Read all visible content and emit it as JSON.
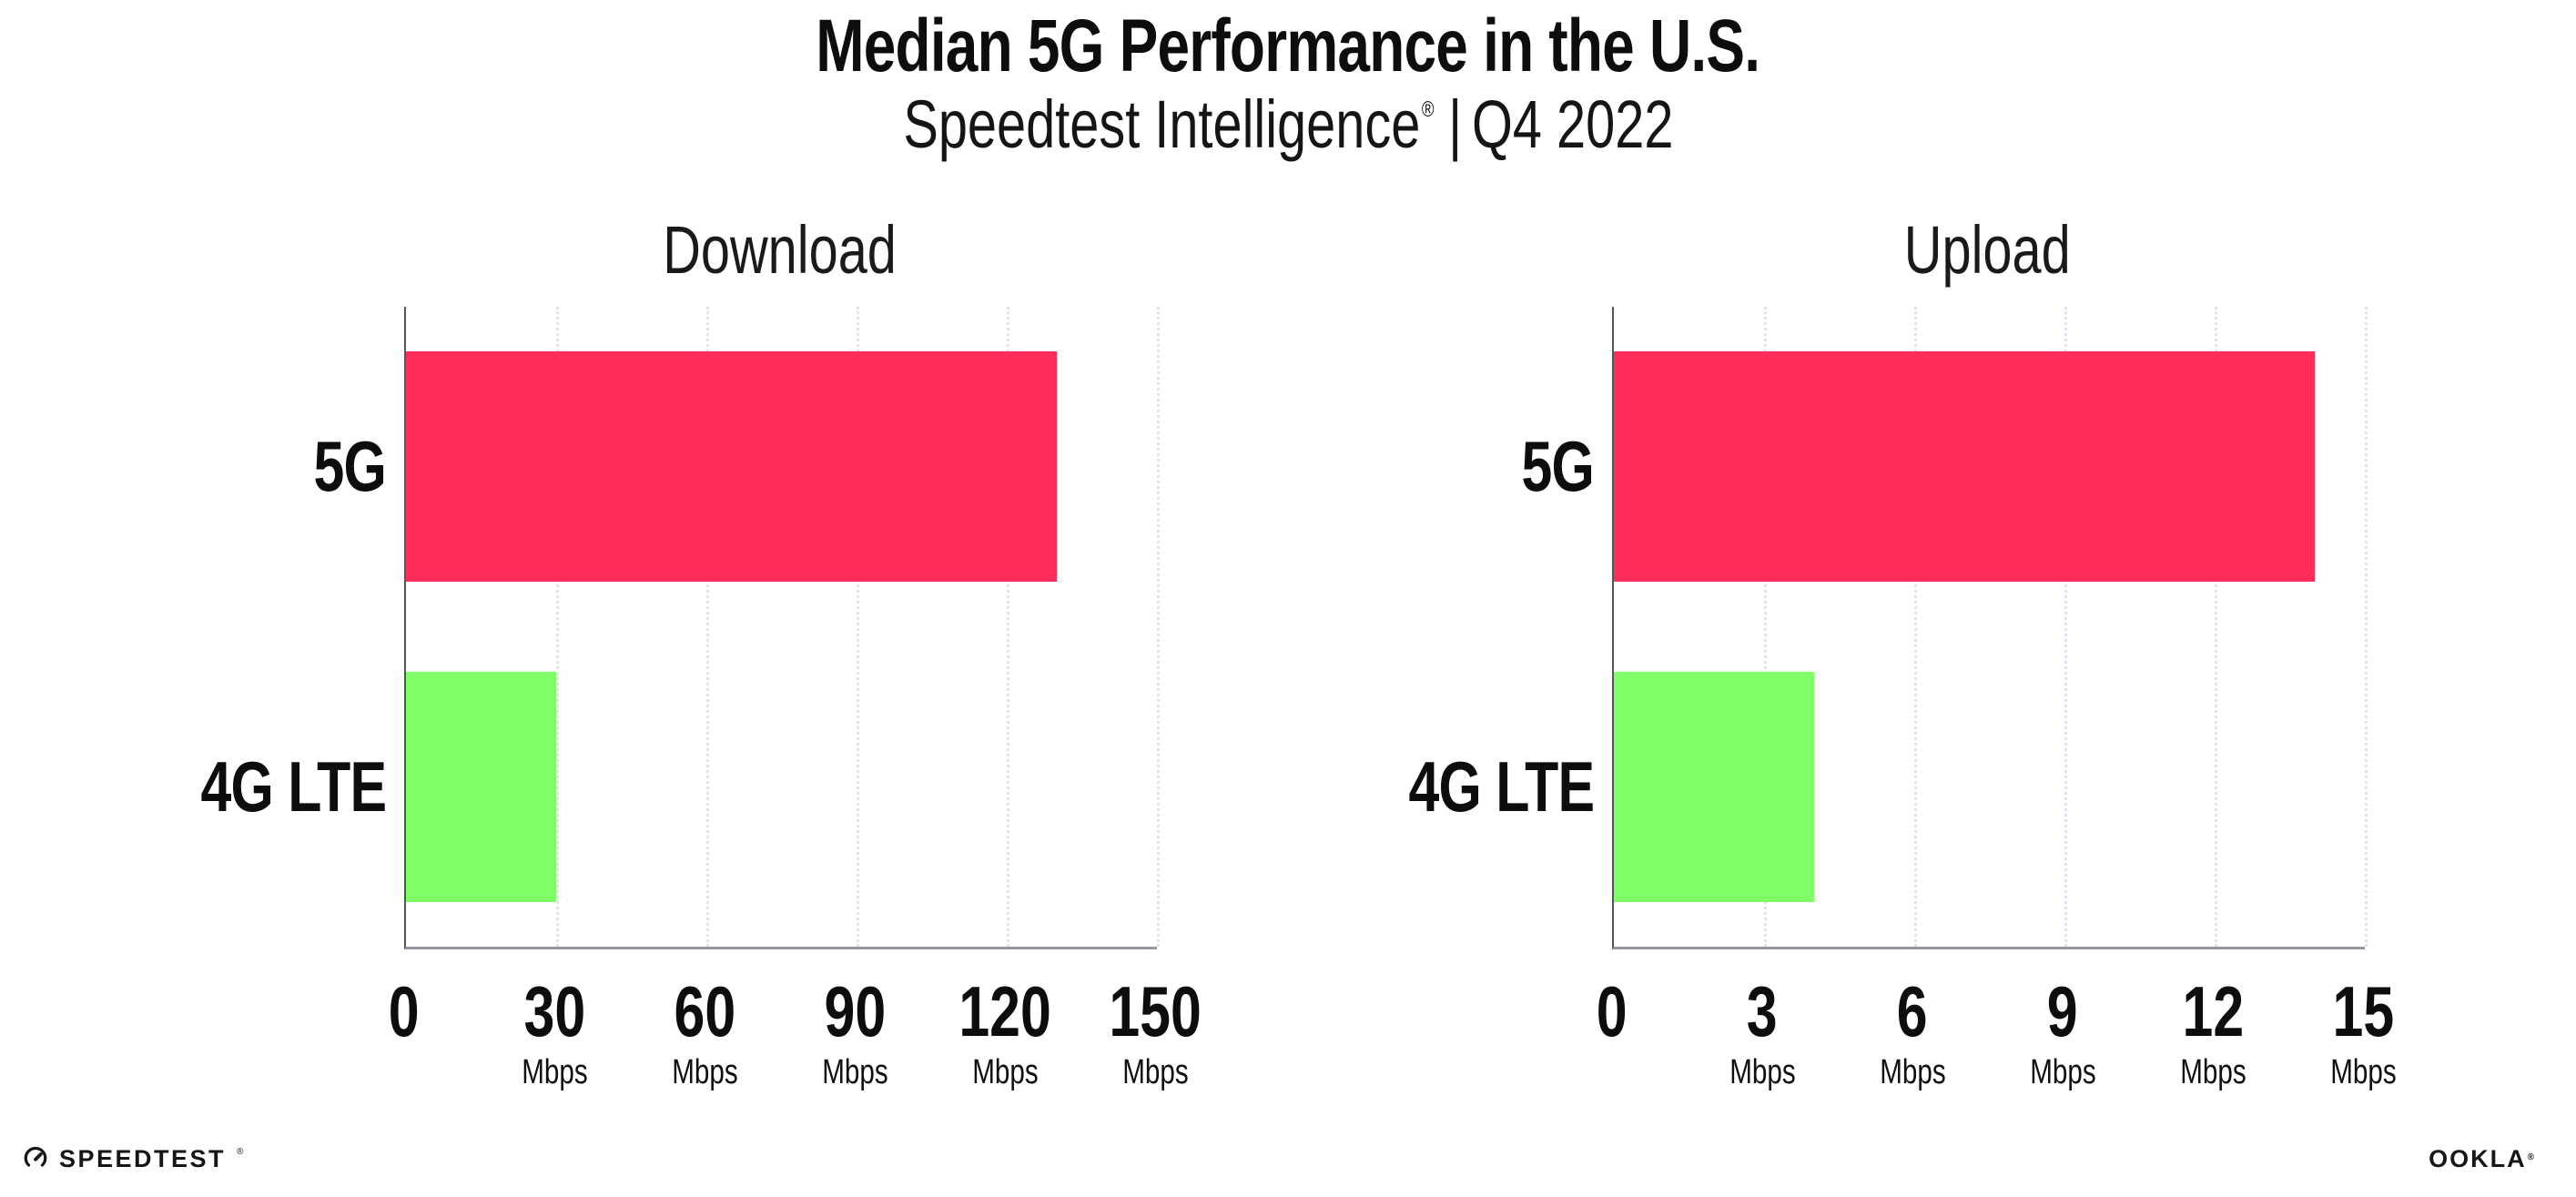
{
  "header": {
    "title": "Median 5G Performance in the U.S.",
    "subtitle_brand": "Speedtest Intelligence",
    "subtitle_reg": "®",
    "subtitle_separator": "|",
    "subtitle_period": "Q4 2022"
  },
  "chart_data": [
    {
      "type": "bar",
      "orientation": "horizontal",
      "title": "Download",
      "categories": [
        "5G",
        "4G LTE"
      ],
      "values": [
        130,
        30
      ],
      "unit": "Mbps",
      "xlim": [
        0,
        150
      ],
      "xticks": [
        0,
        30,
        60,
        90,
        120,
        150
      ],
      "bar_colors": [
        "#ff2d5a",
        "#7fff66"
      ],
      "grid": "vertical-dotted",
      "legend": "none"
    },
    {
      "type": "bar",
      "orientation": "horizontal",
      "title": "Upload",
      "categories": [
        "5G",
        "4G LTE"
      ],
      "values": [
        14,
        4
      ],
      "unit": "Mbps",
      "xlim": [
        0,
        15
      ],
      "xticks": [
        0,
        3,
        6,
        9,
        12,
        15
      ],
      "bar_colors": [
        "#ff2d5a",
        "#7fff66"
      ],
      "grid": "vertical-dotted",
      "legend": "none"
    }
  ],
  "footer": {
    "speedtest_label": "SPEEDTEST",
    "speedtest_reg": "®",
    "ookla_label": "OOKLA",
    "ookla_reg": "®"
  },
  "colors": {
    "bar_5g": "#ff2d5a",
    "bar_4g_lte": "#7fff66",
    "gridline": "#e1e3ef",
    "axis": "#97979e",
    "text": "#0d0d0d"
  }
}
